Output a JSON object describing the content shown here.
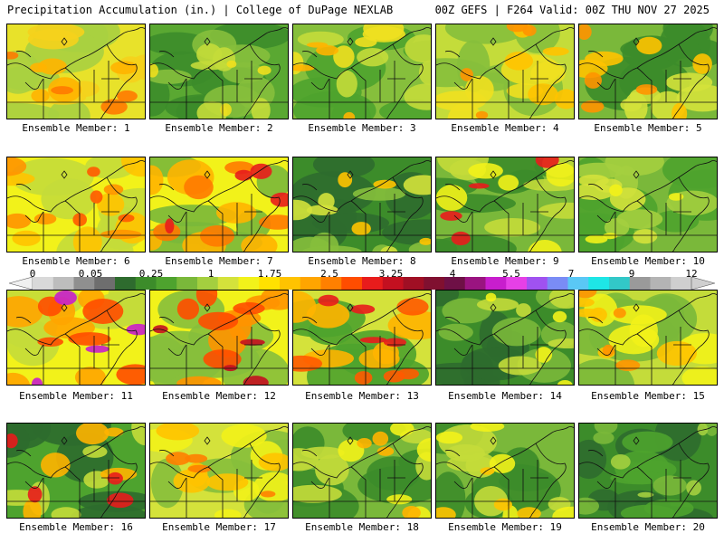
{
  "header": {
    "left": "Precipitation Accumulation (in.) | College of DuPage NEXLAB",
    "right": "00Z GEFS | F264 Valid: 00Z THU NOV 27 2025"
  },
  "colorbar": {
    "labels": [
      "0",
      "0.05",
      "0.25",
      "1",
      "1.75",
      "2.5",
      "3.25",
      "4",
      "5.5",
      "7",
      "9",
      "12"
    ],
    "colors": [
      "#d9d9d9",
      "#bdbdbd",
      "#8f8f8f",
      "#6e6e6e",
      "#2e6b2e",
      "#3c8c2a",
      "#4ea32e",
      "#7ab83a",
      "#a4cf3f",
      "#d4e23b",
      "#f2f21a",
      "#ffe100",
      "#ffc300",
      "#ffa500",
      "#ff8000",
      "#ff4d00",
      "#e81c1c",
      "#c41020",
      "#a00f24",
      "#801030",
      "#6e1046",
      "#9a1480",
      "#c81ecd",
      "#e640e6",
      "#a052f0",
      "#7a8cf5",
      "#5ac8f5",
      "#1ee6e6",
      "#32c8c8",
      "#9a9a9a",
      "#b4b4b4",
      "#cfcfcf"
    ]
  },
  "members": [
    {
      "label": "Ensemble Member: 1",
      "palette": [
        "#a8d040",
        "#e8e22a",
        "#f5d21c",
        "#ffb400",
        "#ff7a00"
      ]
    },
    {
      "label": "Ensemble Member: 2",
      "palette": [
        "#3c8c2a",
        "#5aa832",
        "#86bf3c",
        "#c4dc3a",
        "#eedf1e"
      ]
    },
    {
      "label": "Ensemble Member: 3",
      "palette": [
        "#4ea32e",
        "#86bf3c",
        "#c4dc3a",
        "#f0e020",
        "#ffb400"
      ]
    },
    {
      "label": "Ensemble Member: 4",
      "palette": [
        "#86bf3c",
        "#c4dc3a",
        "#f0e020",
        "#ffc300",
        "#ff9400"
      ]
    },
    {
      "label": "Ensemble Member: 5",
      "palette": [
        "#3c8c2a",
        "#7ab83a",
        "#d4e23b",
        "#ffc300",
        "#ff9400"
      ]
    },
    {
      "label": "Ensemble Member: 6",
      "palette": [
        "#c4dc3a",
        "#f2f21a",
        "#ffc300",
        "#ff9400",
        "#ff5a00"
      ]
    },
    {
      "label": "Ensemble Member: 7",
      "palette": [
        "#7ab83a",
        "#f2f21a",
        "#ffb400",
        "#ff7a00",
        "#e81c1c"
      ]
    },
    {
      "label": "Ensemble Member: 8",
      "palette": [
        "#2e6b2e",
        "#3c8c2a",
        "#86bf3c",
        "#d4e23b",
        "#ffc300"
      ]
    },
    {
      "label": "Ensemble Member: 9",
      "palette": [
        "#3c8c2a",
        "#7ab83a",
        "#c4dc3a",
        "#f2f21a",
        "#e81c1c"
      ]
    },
    {
      "label": "Ensemble Member: 10",
      "palette": [
        "#4ea32e",
        "#7ab83a",
        "#a4cf3f",
        "#d4e23b",
        "#f2f21a"
      ]
    },
    {
      "label": "Ensemble Member: 11",
      "palette": [
        "#c4dc3a",
        "#f2f21a",
        "#ffa500",
        "#ff4d00",
        "#c81ecd"
      ]
    },
    {
      "label": "Ensemble Member: 12",
      "palette": [
        "#86bf3c",
        "#f2f21a",
        "#ff9400",
        "#ff4d00",
        "#c41020"
      ]
    },
    {
      "label": "Ensemble Member: 13",
      "palette": [
        "#4ea32e",
        "#d4e23b",
        "#ffb400",
        "#ff5a00",
        "#e81c1c"
      ]
    },
    {
      "label": "Ensemble Member: 14",
      "palette": [
        "#2e6b2e",
        "#3c8c2a",
        "#7ab83a",
        "#c4dc3a",
        "#f2f21a"
      ]
    },
    {
      "label": "Ensemble Member: 15",
      "palette": [
        "#7ab83a",
        "#c4dc3a",
        "#f2f21a",
        "#ffc300",
        "#ff9400"
      ]
    },
    {
      "label": "Ensemble Member: 16",
      "palette": [
        "#2e6b2e",
        "#4ea32e",
        "#c4dc3a",
        "#ffb400",
        "#e81c1c"
      ]
    },
    {
      "label": "Ensemble Member: 17",
      "palette": [
        "#86bf3c",
        "#d4e23b",
        "#f2f21a",
        "#ffc300",
        "#ff8000"
      ]
    },
    {
      "label": "Ensemble Member: 18",
      "palette": [
        "#3c8c2a",
        "#7ab83a",
        "#c4dc3a",
        "#f2f21a",
        "#ffb400"
      ]
    },
    {
      "label": "Ensemble Member: 19",
      "palette": [
        "#3c8c2a",
        "#7ab83a",
        "#c4dc3a",
        "#f2f21a",
        "#ffc300"
      ]
    },
    {
      "label": "Ensemble Member: 20",
      "palette": [
        "#2e6b2e",
        "#3c8c2a",
        "#4ea32e",
        "#7ab83a",
        "#a4cf3f"
      ]
    }
  ]
}
